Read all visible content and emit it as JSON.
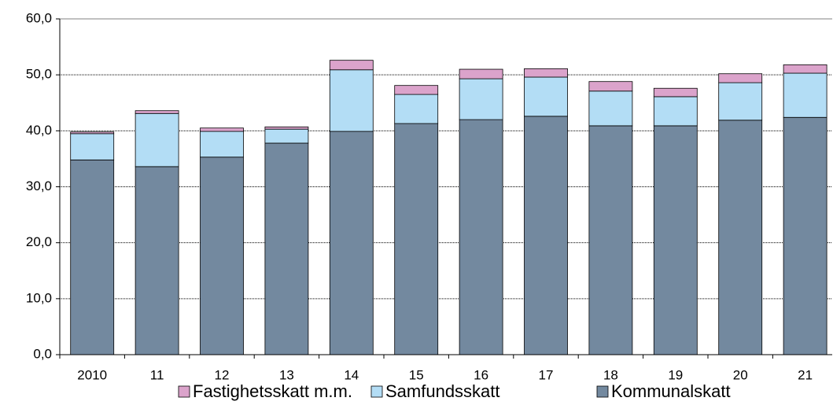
{
  "chart_data": {
    "type": "stacked_bar",
    "categories": [
      "2010",
      "11",
      "12",
      "13",
      "14",
      "15",
      "16",
      "17",
      "18",
      "19",
      "20",
      "21"
    ],
    "series": [
      {
        "name": "Fastighetsskatt m.m.",
        "color": "#dba3cb",
        "values": [
          0.3,
          0.5,
          0.6,
          0.4,
          1.7,
          1.6,
          1.7,
          1.5,
          1.7,
          1.5,
          1.6,
          1.5
        ]
      },
      {
        "name": "Samfundsskatt",
        "color": "#b3ddf5",
        "values": [
          4.7,
          9.5,
          4.6,
          2.5,
          11.0,
          5.2,
          7.3,
          7.0,
          6.2,
          5.2,
          6.7,
          7.9
        ]
      },
      {
        "name": "Kommunalskatt",
        "color": "#73899f",
        "values": [
          34.8,
          33.6,
          35.3,
          37.8,
          39.9,
          41.3,
          42.0,
          42.6,
          40.9,
          40.9,
          41.9,
          42.4
        ]
      }
    ],
    "ylim": [
      0,
      60
    ],
    "yticks": [
      {
        "value": 0,
        "label": "0,0"
      },
      {
        "value": 10,
        "label": "10,0"
      },
      {
        "value": 20,
        "label": "20,0"
      },
      {
        "value": 30,
        "label": "30,0"
      },
      {
        "value": 40,
        "label": "40,0"
      },
      {
        "value": 50,
        "label": "50,0"
      },
      {
        "value": 60,
        "label": "60,0"
      }
    ],
    "grid": true
  }
}
